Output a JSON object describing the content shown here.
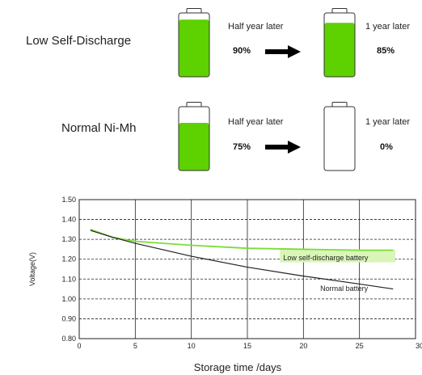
{
  "rows": [
    {
      "label": "Low Self-Discharge",
      "half_caption": "Half year later",
      "half_pct": "90%",
      "year_caption": "1 year later",
      "year_pct": "85%",
      "levels": {
        "now": 0.9,
        "later": 0.85
      }
    },
    {
      "label": "Normal Ni-Mh",
      "half_caption": "Half year later",
      "half_pct": "75%",
      "year_caption": "1 year later",
      "year_pct": "0%",
      "levels": {
        "now": 0.75,
        "later": 0
      }
    }
  ],
  "colors": {
    "battery_fill": "#5ed100",
    "battery_outline": "#333333",
    "low_sd_line": "#7ddc3a",
    "low_sd_label_bg": "#d9f5b8",
    "normal_line": "#222222",
    "grid": "#222222"
  },
  "chart_data": {
    "type": "line",
    "xlabel": "Storage time /days",
    "ylabel": "Voltage(V)",
    "xlim": [
      0,
      30
    ],
    "ylim": [
      0.8,
      1.5
    ],
    "xticks": [
      "0",
      "5",
      "10",
      "15",
      "20",
      "25",
      "30"
    ],
    "yticks": [
      "0.80",
      "0.90",
      "1.00",
      "1.10",
      "1.20",
      "1.30",
      "1.40",
      "1.50"
    ],
    "grid": true,
    "series": [
      {
        "name": "Low self-discharge battery",
        "x": [
          1,
          3,
          5,
          10,
          15,
          20,
          25,
          28
        ],
        "y": [
          1.35,
          1.31,
          1.29,
          1.27,
          1.255,
          1.25,
          1.245,
          1.245
        ]
      },
      {
        "name": "Normal battery",
        "x": [
          1,
          3,
          5,
          10,
          15,
          20,
          25,
          28
        ],
        "y": [
          1.345,
          1.31,
          1.28,
          1.215,
          1.16,
          1.115,
          1.075,
          1.05
        ]
      }
    ]
  }
}
